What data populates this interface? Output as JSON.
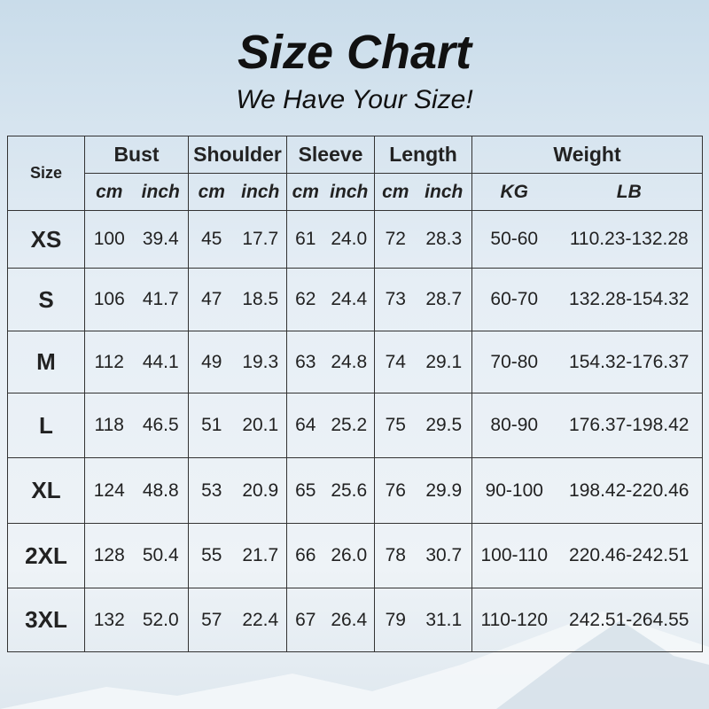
{
  "title": "Size Chart",
  "subtitle": "We Have Your Size!",
  "headers": {
    "size": "Size",
    "groups": [
      "Bust",
      "Shoulder",
      "Sleeve",
      "Length",
      "Weight"
    ],
    "units": [
      "cm",
      "inch",
      "cm",
      "inch",
      "cm",
      "inch",
      "cm",
      "inch",
      "KG",
      "LB"
    ]
  },
  "rows": [
    {
      "size": "XS",
      "values": [
        "100",
        "39.4",
        "45",
        "17.7",
        "61",
        "24.0",
        "72",
        "28.3",
        "50-60",
        "110.23-132.28"
      ]
    },
    {
      "size": "S",
      "values": [
        "106",
        "41.7",
        "47",
        "18.5",
        "62",
        "24.4",
        "73",
        "28.7",
        "60-70",
        "132.28-154.32"
      ]
    },
    {
      "size": "M",
      "values": [
        "112",
        "44.1",
        "49",
        "19.3",
        "63",
        "24.8",
        "74",
        "29.1",
        "70-80",
        "154.32-176.37"
      ]
    },
    {
      "size": "L",
      "values": [
        "118",
        "46.5",
        "51",
        "20.1",
        "64",
        "25.2",
        "75",
        "29.5",
        "80-90",
        "176.37-198.42"
      ]
    },
    {
      "size": "XL",
      "values": [
        "124",
        "48.8",
        "53",
        "20.9",
        "65",
        "25.6",
        "76",
        "29.9",
        "90-100",
        "198.42-220.46"
      ]
    },
    {
      "size": "2XL",
      "values": [
        "128",
        "50.4",
        "55",
        "21.7",
        "66",
        "26.0",
        "78",
        "30.7",
        "100-110",
        "220.46-242.51"
      ]
    },
    {
      "size": "3XL",
      "values": [
        "132",
        "52.0",
        "57",
        "22.4",
        "67",
        "26.4",
        "79",
        "31.1",
        "110-120",
        "242.51-264.55"
      ]
    }
  ]
}
